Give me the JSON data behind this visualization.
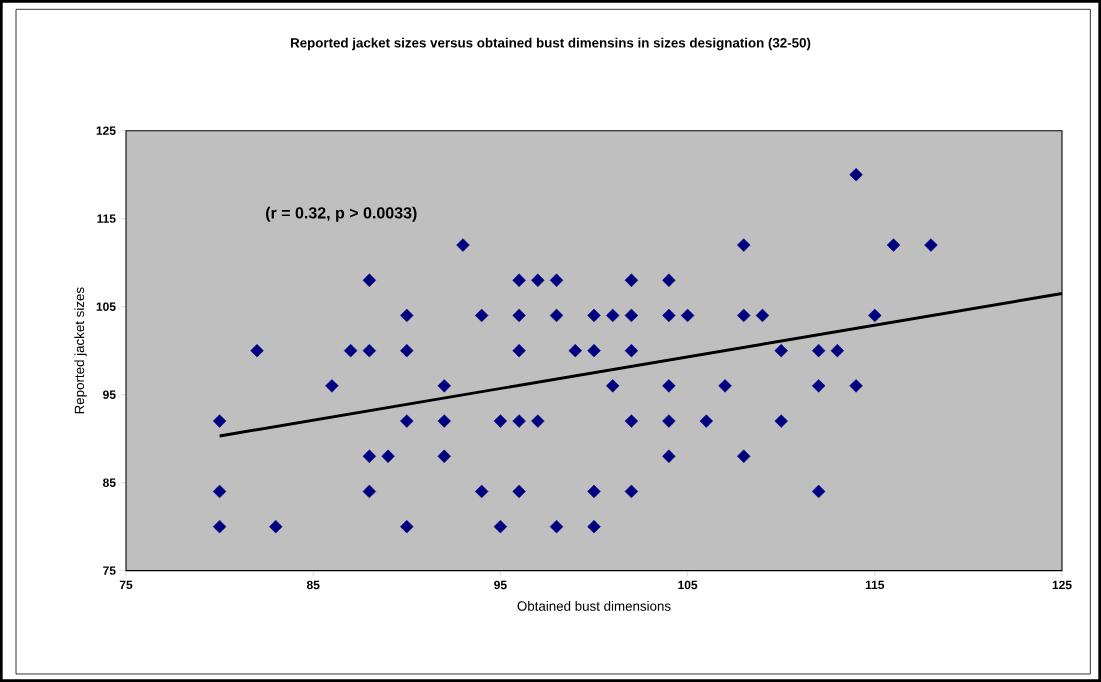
{
  "chart_data": {
    "type": "scatter",
    "title": "Reported jacket sizes versus obtained bust dimensins in sizes designation (32-50)",
    "xlabel": "Obtained bust dimensions",
    "ylabel": "Reported jacket sizes",
    "annotations": [
      "(r = 0.32, p > 0.0033)"
    ],
    "series": [
      {
        "marker": "diamond",
        "color": "#000080",
        "x": [
          80,
          80,
          80,
          82,
          83,
          86,
          87,
          88,
          88,
          88,
          88,
          89,
          90,
          90,
          90,
          90,
          92,
          92,
          92,
          93,
          94,
          94,
          95,
          95,
          96,
          96,
          96,
          96,
          96,
          97,
          97,
          98,
          98,
          98,
          99,
          100,
          100,
          100,
          100,
          101,
          101,
          102,
          102,
          102,
          102,
          102,
          104,
          104,
          104,
          104,
          104,
          105,
          106,
          107,
          108,
          108,
          108,
          109,
          110,
          110,
          112,
          112,
          112,
          113,
          114,
          114,
          115,
          116,
          118
        ],
        "values": [
          92,
          84,
          80,
          100,
          80,
          96,
          100,
          108,
          100,
          88,
          84,
          88,
          104,
          100,
          92,
          80,
          96,
          92,
          88,
          112,
          104,
          84,
          92,
          80,
          108,
          104,
          100,
          92,
          84,
          108,
          92,
          108,
          104,
          80,
          100,
          104,
          100,
          84,
          80,
          104,
          96,
          108,
          104,
          100,
          92,
          84,
          108,
          104,
          96,
          92,
          88,
          104,
          92,
          96,
          112,
          104,
          88,
          104,
          100,
          92,
          100,
          96,
          84,
          100,
          120,
          96,
          104,
          112,
          112
        ]
      },
      {
        "type": "line",
        "color": "#000000",
        "x": [
          80,
          125
        ],
        "values": [
          90.3,
          106.5
        ]
      }
    ],
    "xlim": [
      75,
      125
    ],
    "ylim": [
      75,
      125
    ],
    "xticks": [
      75,
      85,
      95,
      105,
      115,
      125
    ],
    "yticks": [
      75,
      85,
      95,
      105,
      115,
      125
    ],
    "grid": false
  }
}
